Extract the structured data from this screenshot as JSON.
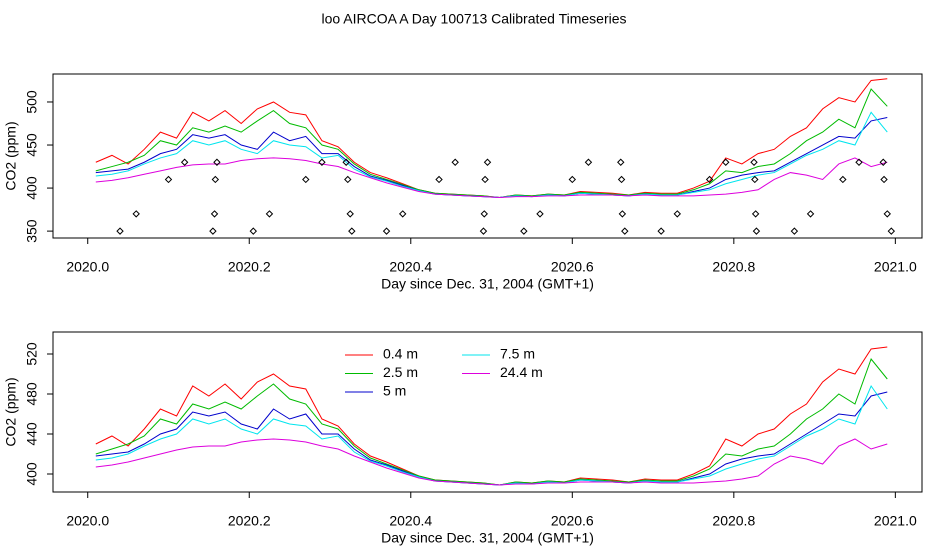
{
  "title": "loo AIRCOA A  Day 100713  Calibrated Timeseries",
  "chart_data": [
    {
      "type": "line",
      "ylabel": "CO2 (ppm)",
      "xlabel": "Day since Dec. 31, 2004 (GMT+1)",
      "xlim": [
        2019.957,
        2021.033
      ],
      "ylim": [
        342,
        532.5
      ],
      "xticks": [
        {
          "value": 2020,
          "label": "2020.0"
        },
        {
          "value": 2020.2,
          "label": "2020.2"
        },
        {
          "value": 2020.4,
          "label": "2020.4"
        },
        {
          "value": 2020.6,
          "label": "2020.6"
        },
        {
          "value": 2020.8,
          "label": "2020.8"
        },
        {
          "value": 2021,
          "label": "2021.0"
        }
      ],
      "yticks": [
        350,
        400,
        450,
        500
      ],
      "x": [
        2020.01,
        2020.03,
        2020.05,
        2020.07,
        2020.09,
        2020.11,
        2020.13,
        2020.15,
        2020.17,
        2020.19,
        2020.21,
        2020.23,
        2020.25,
        2020.27,
        2020.29,
        2020.31,
        2020.33,
        2020.35,
        2020.37,
        2020.39,
        2020.41,
        2020.43,
        2020.45,
        2020.47,
        2020.49,
        2020.51,
        2020.53,
        2020.55,
        2020.57,
        2020.59,
        2020.61,
        2020.63,
        2020.65,
        2020.67,
        2020.69,
        2020.71,
        2020.73,
        2020.75,
        2020.77,
        2020.79,
        2020.81,
        2020.83,
        2020.85,
        2020.87,
        2020.89,
        2020.91,
        2020.93,
        2020.95,
        2020.97,
        2020.99
      ],
      "series": [
        {
          "color": "#ff0000",
          "values": [
            430,
            438,
            428,
            445,
            465,
            458,
            488,
            478,
            490,
            475,
            492,
            500,
            488,
            485,
            455,
            448,
            430,
            418,
            412,
            405,
            398,
            394,
            393,
            392,
            391,
            389,
            392,
            391,
            393,
            392,
            396,
            395,
            394,
            392,
            395,
            394,
            394,
            400,
            408,
            435,
            428,
            440,
            445,
            460,
            470,
            492,
            505,
            500,
            525,
            527
          ]
        },
        {
          "color": "#00bb00",
          "values": [
            420,
            425,
            430,
            438,
            455,
            450,
            470,
            465,
            472,
            465,
            478,
            490,
            475,
            470,
            450,
            445,
            428,
            416,
            410,
            404,
            398,
            394,
            393,
            392,
            391,
            389,
            392,
            391,
            393,
            392,
            395,
            394,
            393,
            392,
            394,
            393,
            393,
            398,
            405,
            420,
            418,
            425,
            428,
            440,
            455,
            465,
            480,
            470,
            515,
            495
          ]
        },
        {
          "color": "#0000cc",
          "values": [
            418,
            420,
            422,
            430,
            440,
            445,
            462,
            458,
            462,
            450,
            445,
            465,
            455,
            460,
            440,
            440,
            425,
            414,
            409,
            403,
            397,
            393,
            392,
            391,
            390,
            389,
            391,
            390,
            392,
            391,
            394,
            393,
            392,
            391,
            393,
            392,
            392,
            396,
            400,
            410,
            415,
            418,
            420,
            430,
            440,
            450,
            460,
            458,
            478,
            482
          ]
        },
        {
          "color": "#00e5ee",
          "values": [
            414,
            416,
            420,
            428,
            435,
            440,
            455,
            450,
            455,
            445,
            440,
            455,
            450,
            448,
            435,
            438,
            422,
            413,
            408,
            402,
            397,
            393,
            392,
            391,
            390,
            389,
            391,
            390,
            392,
            391,
            394,
            393,
            392,
            391,
            393,
            392,
            392,
            395,
            398,
            405,
            410,
            415,
            418,
            428,
            438,
            445,
            455,
            450,
            488,
            465
          ]
        },
        {
          "color": "#dd00dd",
          "values": [
            407,
            409,
            412,
            416,
            420,
            424,
            427,
            428,
            428,
            432,
            434,
            435,
            434,
            432,
            428,
            425,
            418,
            412,
            406,
            401,
            396,
            393,
            392,
            391,
            390,
            389,
            390,
            390,
            391,
            391,
            392,
            392,
            392,
            391,
            392,
            391,
            391,
            391,
            392,
            393,
            395,
            398,
            410,
            418,
            415,
            410,
            428,
            435,
            425,
            430
          ]
        }
      ],
      "points": {
        "color": "#000000",
        "x": [
          2020.04,
          2020.06,
          2020.1,
          2020.12,
          2020.155,
          2020.157,
          2020.158,
          2020.16,
          2020.205,
          2020.225,
          2020.27,
          2020.29,
          2020.32,
          2020.322,
          2020.325,
          2020.327,
          2020.37,
          2020.39,
          2020.435,
          2020.455,
          2020.49,
          2020.491,
          2020.492,
          2020.495,
          2020.54,
          2020.56,
          2020.6,
          2020.62,
          2020.66,
          2020.661,
          2020.662,
          2020.665,
          2020.71,
          2020.73,
          2020.77,
          2020.79,
          2020.825,
          2020.826,
          2020.827,
          2020.828,
          2020.875,
          2020.895,
          2020.935,
          2020.955,
          2020.985,
          2020.986,
          2020.99,
          2020.995
        ],
        "values": [
          350,
          370,
          410,
          430,
          350,
          370,
          410,
          430,
          350,
          370,
          410,
          430,
          430,
          410,
          370,
          350,
          350,
          370,
          410,
          430,
          350,
          370,
          410,
          430,
          350,
          370,
          410,
          430,
          430,
          410,
          370,
          350,
          350,
          370,
          410,
          430,
          430,
          410,
          370,
          350,
          350,
          370,
          410,
          430,
          430,
          410,
          370,
          350
        ]
      }
    },
    {
      "type": "line",
      "ylabel": "CO2 (ppm)",
      "xlabel": "Day since Dec. 31, 2004 (GMT+1)",
      "xlim": [
        2019.957,
        2021.033
      ],
      "ylim": [
        382,
        542
      ],
      "xticks": [
        {
          "value": 2020,
          "label": "2020.0"
        },
        {
          "value": 2020.2,
          "label": "2020.2"
        },
        {
          "value": 2020.4,
          "label": "2020.4"
        },
        {
          "value": 2020.6,
          "label": "2020.6"
        },
        {
          "value": 2020.8,
          "label": "2020.8"
        },
        {
          "value": 2021,
          "label": "2021.0"
        }
      ],
      "yticks": [
        400,
        440,
        480,
        520
      ],
      "x": [
        2020.01,
        2020.03,
        2020.05,
        2020.07,
        2020.09,
        2020.11,
        2020.13,
        2020.15,
        2020.17,
        2020.19,
        2020.21,
        2020.23,
        2020.25,
        2020.27,
        2020.29,
        2020.31,
        2020.33,
        2020.35,
        2020.37,
        2020.39,
        2020.41,
        2020.43,
        2020.45,
        2020.47,
        2020.49,
        2020.51,
        2020.53,
        2020.55,
        2020.57,
        2020.59,
        2020.61,
        2020.63,
        2020.65,
        2020.67,
        2020.69,
        2020.71,
        2020.73,
        2020.75,
        2020.77,
        2020.79,
        2020.81,
        2020.83,
        2020.85,
        2020.87,
        2020.89,
        2020.91,
        2020.93,
        2020.95,
        2020.97,
        2020.99
      ],
      "series": [
        {
          "name": "0.4 m",
          "color": "#ff0000",
          "values": [
            430,
            438,
            428,
            445,
            465,
            458,
            488,
            478,
            490,
            475,
            492,
            500,
            488,
            485,
            455,
            448,
            430,
            418,
            412,
            405,
            398,
            394,
            393,
            392,
            391,
            389,
            392,
            391,
            393,
            392,
            396,
            395,
            394,
            392,
            395,
            394,
            394,
            400,
            408,
            435,
            428,
            440,
            445,
            460,
            470,
            492,
            505,
            500,
            525,
            527
          ]
        },
        {
          "name": "2.5 m",
          "color": "#00bb00",
          "values": [
            420,
            425,
            430,
            438,
            455,
            450,
            470,
            465,
            472,
            465,
            478,
            490,
            475,
            470,
            450,
            445,
            428,
            416,
            410,
            404,
            398,
            394,
            393,
            392,
            391,
            389,
            392,
            391,
            393,
            392,
            395,
            394,
            393,
            392,
            394,
            393,
            393,
            398,
            405,
            420,
            418,
            425,
            428,
            440,
            455,
            465,
            480,
            470,
            515,
            495
          ]
        },
        {
          "name": "5 m",
          "color": "#0000cc",
          "values": [
            418,
            420,
            422,
            430,
            440,
            445,
            462,
            458,
            462,
            450,
            445,
            465,
            455,
            460,
            440,
            440,
            425,
            414,
            409,
            403,
            397,
            393,
            392,
            391,
            390,
            389,
            391,
            390,
            392,
            391,
            394,
            393,
            392,
            391,
            393,
            392,
            392,
            396,
            400,
            410,
            415,
            418,
            420,
            430,
            440,
            450,
            460,
            458,
            478,
            482
          ]
        },
        {
          "name": "7.5 m",
          "color": "#00e5ee",
          "values": [
            414,
            416,
            420,
            428,
            435,
            440,
            455,
            450,
            455,
            445,
            440,
            455,
            450,
            448,
            435,
            438,
            422,
            413,
            408,
            402,
            397,
            393,
            392,
            391,
            390,
            389,
            391,
            390,
            392,
            391,
            394,
            393,
            392,
            391,
            393,
            392,
            392,
            395,
            398,
            405,
            410,
            415,
            418,
            428,
            438,
            445,
            455,
            450,
            488,
            465
          ]
        },
        {
          "name": "24.4 m",
          "color": "#dd00dd",
          "values": [
            407,
            409,
            412,
            416,
            420,
            424,
            427,
            428,
            428,
            432,
            434,
            435,
            434,
            432,
            428,
            425,
            418,
            412,
            406,
            401,
            396,
            393,
            392,
            391,
            390,
            389,
            390,
            390,
            391,
            391,
            392,
            392,
            392,
            391,
            392,
            391,
            391,
            391,
            392,
            393,
            395,
            398,
            410,
            418,
            415,
            410,
            428,
            435,
            425,
            430
          ]
        }
      ]
    }
  ]
}
